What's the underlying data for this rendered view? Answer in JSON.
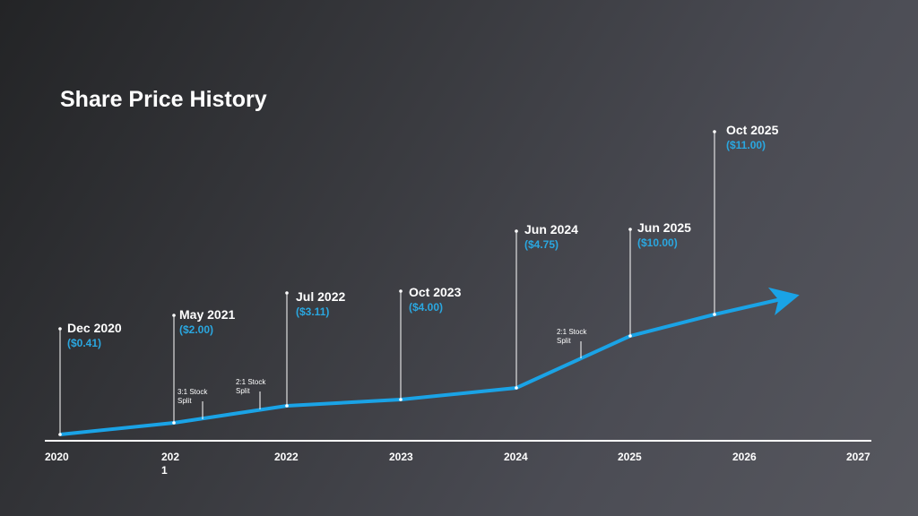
{
  "title": "Share Price History",
  "years": [
    "2020",
    "2021",
    "2022",
    "2023",
    "2024",
    "2025",
    "2026",
    "2027"
  ],
  "milestones": [
    {
      "date": "Dec 2020",
      "price": "($0.41)"
    },
    {
      "date": "May 2021",
      "price": "($2.00)"
    },
    {
      "date": "Jul 2022",
      "price": "($3.11)"
    },
    {
      "date": "Oct 2023",
      "price": "($4.00)"
    },
    {
      "date": "Jun 2024",
      "price": "($4.75)"
    },
    {
      "date": "Jun 2025",
      "price": "($10.00)"
    },
    {
      "date": "Oct 2025",
      "price": "($11.00)"
    }
  ],
  "splits": [
    "3:1 Stock Split",
    "2:1 Stock Split",
    "2:1 Stock Split"
  ]
}
